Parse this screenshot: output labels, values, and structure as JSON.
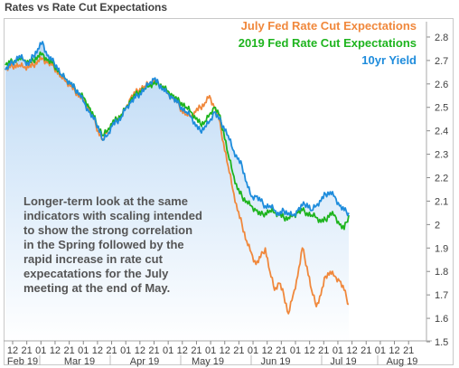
{
  "title": "Rates vs Rate Cut Expectations",
  "chart_data": {
    "type": "line",
    "title": "Rates vs Rate Cut Expectations",
    "y_right_ticks": [
      "2.8",
      "2.7",
      "2.6",
      "2.5",
      "2.4",
      "2.3",
      "2.2",
      "2.1",
      "2",
      "1.9",
      "1.8",
      "1.7",
      "1.6",
      "1.5"
    ],
    "ylim": [
      1.5,
      2.85
    ],
    "x_day_ticks": [
      "12",
      "21",
      "01",
      "12",
      "21",
      "01",
      "12",
      "21",
      "01",
      "12",
      "21",
      "01",
      "12",
      "21",
      "01",
      "12",
      "21",
      "01",
      "12",
      "21",
      "01",
      "12",
      "21",
      "01",
      "12",
      "21",
      "01",
      "12",
      "21"
    ],
    "x_month_labels": [
      "Feb 19",
      "Mar 19",
      "Apr 19",
      "May 19",
      "Jun 19",
      "Jul 19",
      "Aug 19"
    ],
    "legend": [
      {
        "name": "July Fed Rate Cut Expectations",
        "color": "#F0883C"
      },
      {
        "name": "2019 Fed Rate Cut Expectations",
        "color": "#1EB41E"
      },
      {
        "name": "10yr Yield",
        "color": "#1E8CDC"
      }
    ],
    "annotation": [
      "Longer-term look at the same",
      "indicators with scaling intended",
      "to show the strong correlation",
      "in the Spring followed by the",
      "rapid increase in rate cut",
      "expecatations for the July",
      "meeting at the end of May."
    ],
    "series": [
      {
        "name": "10yr Yield",
        "color": "#1E8CDC",
        "values": [
          2.66,
          2.68,
          2.7,
          2.72,
          2.7,
          2.68,
          2.72,
          2.75,
          2.78,
          2.72,
          2.7,
          2.68,
          2.64,
          2.62,
          2.6,
          2.58,
          2.56,
          2.52,
          2.48,
          2.45,
          2.42,
          2.36,
          2.38,
          2.42,
          2.44,
          2.46,
          2.5,
          2.52,
          2.54,
          2.56,
          2.58,
          2.6,
          2.62,
          2.6,
          2.58,
          2.56,
          2.54,
          2.52,
          2.5,
          2.48,
          2.46,
          2.42,
          2.4,
          2.42,
          2.44,
          2.48,
          2.45,
          2.42,
          2.38,
          2.32,
          2.28,
          2.25,
          2.18,
          2.12,
          2.12,
          2.1,
          2.08,
          2.08,
          2.06,
          2.04,
          2.06,
          2.05,
          2.04,
          2.06,
          2.08,
          2.09,
          2.06,
          2.08,
          2.1,
          2.13,
          2.14,
          2.12,
          2.08,
          2.06,
          2.05
        ]
      },
      {
        "name": "2019 Fed Rate Cut Expectations",
        "color": "#1EB41E",
        "values": [
          2.68,
          2.69,
          2.7,
          2.71,
          2.7,
          2.69,
          2.7,
          2.72,
          2.73,
          2.7,
          2.69,
          2.67,
          2.64,
          2.62,
          2.6,
          2.58,
          2.56,
          2.54,
          2.5,
          2.46,
          2.42,
          2.38,
          2.4,
          2.43,
          2.45,
          2.47,
          2.5,
          2.53,
          2.55,
          2.57,
          2.58,
          2.59,
          2.6,
          2.6,
          2.59,
          2.57,
          2.55,
          2.53,
          2.52,
          2.5,
          2.48,
          2.45,
          2.43,
          2.44,
          2.47,
          2.5,
          2.47,
          2.4,
          2.3,
          2.22,
          2.15,
          2.12,
          2.1,
          2.08,
          2.06,
          2.04,
          2.05,
          2.06,
          2.05,
          2.04,
          2.03,
          2.03,
          2.04,
          2.05,
          2.06,
          2.05,
          2.04,
          2.03,
          2.01,
          2.02,
          2.05,
          2.04,
          2.0,
          1.98,
          2.04
        ]
      },
      {
        "name": "July Fed Rate Cut Expectations",
        "color": "#F0883C",
        "values": [
          2.66,
          2.67,
          2.68,
          2.68,
          2.67,
          2.67,
          2.68,
          2.7,
          2.71,
          2.69,
          2.68,
          2.66,
          2.63,
          2.61,
          2.59,
          2.57,
          2.55,
          2.53,
          2.49,
          2.45,
          2.4,
          2.36,
          2.4,
          2.43,
          2.45,
          2.47,
          2.5,
          2.54,
          2.56,
          2.58,
          2.59,
          2.6,
          2.61,
          2.6,
          2.59,
          2.56,
          2.54,
          2.52,
          2.49,
          2.47,
          2.46,
          2.48,
          2.5,
          2.52,
          2.55,
          2.5,
          2.45,
          2.35,
          2.25,
          2.15,
          2.06,
          2.0,
          1.93,
          1.88,
          1.83,
          1.86,
          1.9,
          1.8,
          1.72,
          1.75,
          1.7,
          1.62,
          1.7,
          1.78,
          1.9,
          1.82,
          1.72,
          1.65,
          1.7,
          1.78,
          1.8,
          1.78,
          1.76,
          1.72,
          1.66
        ]
      }
    ]
  }
}
